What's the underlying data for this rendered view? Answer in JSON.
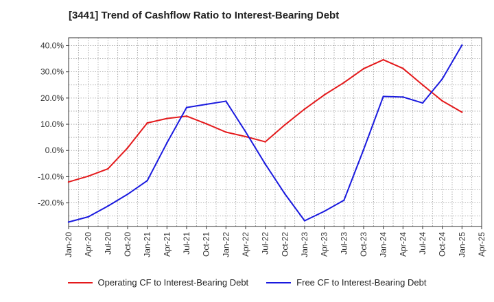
{
  "chart_data": {
    "type": "line",
    "title": "[3441]  Trend of Cashflow Ratio to Interest-Bearing Debt",
    "xlabel": "",
    "ylabel": "",
    "x_ticks": [
      "Jan-20",
      "Apr-20",
      "Jul-20",
      "Oct-20",
      "Jan-21",
      "Apr-21",
      "Jul-21",
      "Oct-21",
      "Jan-22",
      "Apr-22",
      "Jul-22",
      "Oct-22",
      "Jan-23",
      "Apr-23",
      "Jul-23",
      "Oct-23",
      "Jan-24",
      "Apr-24",
      "Jul-24",
      "Oct-24",
      "Jan-25",
      "Apr-25"
    ],
    "y_ticks": [
      "40.0%",
      "30.0%",
      "20.0%",
      "10.0%",
      "0.0%",
      "-10.0%",
      "-20.0%"
    ],
    "y_tick_values": [
      40,
      30,
      20,
      10,
      0,
      -10,
      -20
    ],
    "ylim": [
      -29,
      43
    ],
    "grid": true,
    "legend_position": "bottom",
    "series": [
      {
        "name": "Operating CF to Interest-Bearing Debt",
        "color": "#e41a1c",
        "x": [
          "Jan-20",
          "Apr-20",
          "Jul-20",
          "Oct-20",
          "Jan-21",
          "Apr-21",
          "Jul-21",
          "Oct-21",
          "Jan-22",
          "Apr-22",
          "Jul-22",
          "Oct-22",
          "Jan-23",
          "Apr-23",
          "Jul-23",
          "Oct-23",
          "Jan-24",
          "Apr-24",
          "Jul-24",
          "Oct-24",
          "Jan-25"
        ],
        "values": [
          -12.0,
          -9.8,
          -7.0,
          1.0,
          10.5,
          12.2,
          13.1,
          10.2,
          7.0,
          5.3,
          3.3,
          9.8,
          15.8,
          21.2,
          25.9,
          31.2,
          34.6,
          31.3,
          25.0,
          18.9,
          14.6
        ]
      },
      {
        "name": "Free CF to Interest-Bearing Debt",
        "color": "#1a1adf",
        "x": [
          "Jan-20",
          "Apr-20",
          "Jul-20",
          "Oct-20",
          "Jan-21",
          "Apr-21",
          "Jul-21",
          "Oct-21",
          "Jan-22",
          "Apr-22",
          "Jul-22",
          "Oct-22",
          "Jan-23",
          "Apr-23",
          "Jul-23",
          "Oct-23",
          "Jan-24",
          "Apr-24",
          "Jul-24",
          "Oct-24",
          "Jan-25"
        ],
        "values": [
          -27.3,
          -25.3,
          -21.2,
          -16.7,
          -11.5,
          2.9,
          16.4,
          17.6,
          18.8,
          7.1,
          -5.2,
          -16.6,
          -26.8,
          -23.2,
          -19.0,
          0.4,
          20.6,
          20.4,
          18.1,
          27.3,
          40.2
        ]
      }
    ]
  }
}
